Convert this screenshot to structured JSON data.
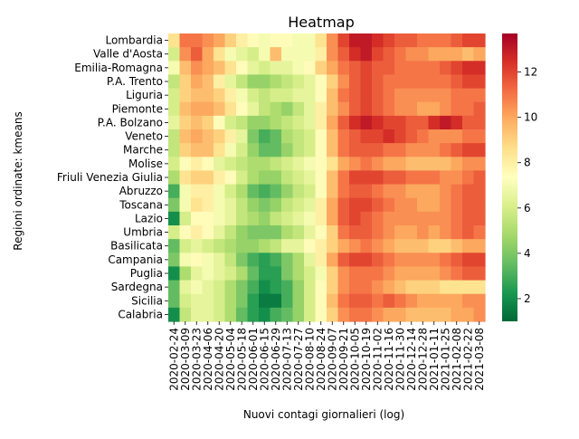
{
  "chart_data": {
    "type": "heatmap",
    "title": "Heatmap",
    "xlabel": "Nuovi contagi giornalieri (log)",
    "ylabel": "Regioni ordinate: kmeans",
    "rows": [
      "Lombardia",
      "Valle d'Aosta",
      "Emilia-Romagna",
      "P.A. Trento",
      "Liguria",
      "Piemonte",
      "P.A. Bolzano",
      "Veneto",
      "Marche",
      "Molise",
      "Friuli Venezia Giulia",
      "Abruzzo",
      "Toscana",
      "Lazio",
      "Umbria",
      "Basilicata",
      "Campania",
      "Puglia",
      "Sardegna",
      "Sicilia",
      "Calabria"
    ],
    "column_tick_labels": [
      "2020-02-24",
      "2020-03-09",
      "2020-03-23",
      "2020-04-06",
      "2020-04-20",
      "2020-05-04",
      "2020-05-18",
      "2020-06-01",
      "2020-06-15",
      "2020-06-29",
      "2020-07-13",
      "2020-07-27",
      "2020-08-10",
      "2020-08-24",
      "2020-09-07",
      "2020-09-21",
      "2020-10-05",
      "2020-10-19",
      "2020-11-02",
      "2020-11-16",
      "2020-11-30",
      "2020-12-14",
      "2020-12-28",
      "2021-01-11",
      "2021-01-25",
      "2021-02-08",
      "2021-02-22",
      "2021-03-08"
    ],
    "colorbar": {
      "colormap": "RdYlGn_r",
      "vmin": 1,
      "vmax": 13.7,
      "ticks": [
        2,
        4,
        6,
        8,
        10,
        12
      ]
    },
    "approximate_values_per_column": {
      "note": "",
      "columns": [
        [
          8.5,
          6.0,
          7.0,
          5.5,
          6.0,
          6.0,
          6.5,
          5.5,
          5.5,
          6.0,
          5.0,
          3.0,
          4.0,
          2.0,
          6.0,
          3.5,
          4.0,
          2.0,
          3.5,
          3.5,
          2.0
        ],
        [
          11.0,
          10.5,
          9.5,
          9.0,
          9.0,
          9.5,
          9.0,
          9.5,
          9.0,
          7.5,
          8.5,
          7.0,
          7.0,
          6.0,
          7.5,
          6.0,
          7.0,
          5.0,
          6.5,
          6.0,
          5.5
        ],
        [
          11.0,
          11.5,
          10.5,
          10.0,
          9.5,
          10.0,
          9.5,
          10.0,
          9.5,
          8.0,
          9.0,
          8.0,
          8.5,
          7.5,
          8.0,
          6.5,
          7.5,
          6.5,
          7.0,
          6.5,
          6.5
        ],
        [
          10.5,
          10.0,
          10.0,
          9.5,
          9.5,
          10.0,
          9.0,
          9.5,
          9.5,
          7.5,
          9.0,
          8.0,
          8.0,
          7.5,
          7.5,
          6.0,
          7.0,
          7.0,
          6.5,
          6.5,
          6.5
        ],
        [
          10.0,
          8.5,
          9.5,
          8.0,
          9.0,
          9.5,
          7.5,
          9.0,
          8.5,
          6.5,
          8.0,
          7.0,
          7.0,
          7.0,
          6.5,
          5.5,
          6.5,
          6.5,
          6.0,
          6.0,
          6.0
        ],
        [
          9.0,
          7.0,
          8.5,
          6.5,
          8.0,
          8.5,
          6.0,
          8.0,
          7.0,
          6.0,
          7.5,
          6.0,
          6.5,
          6.5,
          5.5,
          5.0,
          5.5,
          6.0,
          5.0,
          5.0,
          5.0
        ],
        [
          8.0,
          6.5,
          7.5,
          5.5,
          7.0,
          7.5,
          5.5,
          6.5,
          6.0,
          5.5,
          6.0,
          5.0,
          5.5,
          5.5,
          4.5,
          4.5,
          4.0,
          5.0,
          4.0,
          4.0,
          3.5
        ],
        [
          7.5,
          6.0,
          6.5,
          4.5,
          6.0,
          6.5,
          4.5,
          4.0,
          4.5,
          5.0,
          5.0,
          3.5,
          4.5,
          5.0,
          4.0,
          4.5,
          3.0,
          3.5,
          3.0,
          2.5,
          2.5
        ],
        [
          7.0,
          7.0,
          6.0,
          4.5,
          5.5,
          5.5,
          4.5,
          3.0,
          3.5,
          5.0,
          4.5,
          3.0,
          4.0,
          4.5,
          4.0,
          5.0,
          2.5,
          2.5,
          2.0,
          1.5,
          2.0
        ],
        [
          7.5,
          9.5,
          6.5,
          5.0,
          6.0,
          5.0,
          5.0,
          3.5,
          3.5,
          5.5,
          4.5,
          3.5,
          4.5,
          5.5,
          4.0,
          5.5,
          3.0,
          2.5,
          2.5,
          1.5,
          3.0
        ],
        [
          7.5,
          7.0,
          6.5,
          5.5,
          6.0,
          4.5,
          5.5,
          5.0,
          4.5,
          6.0,
          5.5,
          4.5,
          5.5,
          6.0,
          5.0,
          6.5,
          4.0,
          4.0,
          3.0,
          3.0,
          3.5
        ],
        [
          7.0,
          7.0,
          7.0,
          6.0,
          6.5,
          5.5,
          6.0,
          5.5,
          5.5,
          6.5,
          6.0,
          5.5,
          6.0,
          6.5,
          5.5,
          6.5,
          5.0,
          5.0,
          4.5,
          4.5,
          4.5
        ],
        [
          7.0,
          7.0,
          7.5,
          6.5,
          6.5,
          6.5,
          6.5,
          6.0,
          6.0,
          7.0,
          6.5,
          6.0,
          6.5,
          7.0,
          6.5,
          7.5,
          6.5,
          6.0,
          6.0,
          6.0,
          6.0
        ],
        [
          8.5,
          8.0,
          9.0,
          7.5,
          7.5,
          8.0,
          8.0,
          7.5,
          7.5,
          7.5,
          7.5,
          7.5,
          8.0,
          8.0,
          7.5,
          8.0,
          8.0,
          7.0,
          7.5,
          7.5,
          7.5
        ],
        [
          10.5,
          10.5,
          10.0,
          9.0,
          9.5,
          9.5,
          10.0,
          9.5,
          9.5,
          8.5,
          9.5,
          9.5,
          10.0,
          10.0,
          9.0,
          9.0,
          10.0,
          9.0,
          9.0,
          9.5,
          9.0
        ],
        [
          12.0,
          11.5,
          11.0,
          10.5,
          11.0,
          10.5,
          11.5,
          11.0,
          11.0,
          10.0,
          11.0,
          11.0,
          11.5,
          11.5,
          11.0,
          10.0,
          11.5,
          10.5,
          10.5,
          11.0,
          10.5
        ],
        [
          13.0,
          12.5,
          11.5,
          11.5,
          11.5,
          11.5,
          12.5,
          11.5,
          11.5,
          10.5,
          12.0,
          11.5,
          12.0,
          12.0,
          11.5,
          10.5,
          12.0,
          11.0,
          11.0,
          11.5,
          11.0
        ],
        [
          13.0,
          13.0,
          12.0,
          12.0,
          12.0,
          12.0,
          13.0,
          12.0,
          11.5,
          11.0,
          12.0,
          11.5,
          12.0,
          11.5,
          11.5,
          11.0,
          12.0,
          11.0,
          11.0,
          11.5,
          11.0
        ],
        [
          12.5,
          12.0,
          11.5,
          11.5,
          11.5,
          11.5,
          12.5,
          12.0,
          11.5,
          10.5,
          12.0,
          11.0,
          11.5,
          11.0,
          11.0,
          10.5,
          11.5,
          11.0,
          10.5,
          11.0,
          10.5
        ],
        [
          12.0,
          11.5,
          11.5,
          11.0,
          11.0,
          11.0,
          12.0,
          12.5,
          11.0,
          10.0,
          11.5,
          10.5,
          11.0,
          10.5,
          10.5,
          10.0,
          11.0,
          10.5,
          10.0,
          11.5,
          10.0
        ],
        [
          11.5,
          11.0,
          11.0,
          11.0,
          10.5,
          10.5,
          12.0,
          12.0,
          11.0,
          10.0,
          11.5,
          10.5,
          10.5,
          10.5,
          10.0,
          9.5,
          10.5,
          10.0,
          9.5,
          11.0,
          10.0
        ],
        [
          11.5,
          10.5,
          11.0,
          11.0,
          10.5,
          10.5,
          11.5,
          11.5,
          10.5,
          9.5,
          11.0,
          10.0,
          10.5,
          10.5,
          10.0,
          9.5,
          10.5,
          10.0,
          9.0,
          10.5,
          9.5
        ],
        [
          11.0,
          10.5,
          11.0,
          11.0,
          10.5,
          10.0,
          11.5,
          11.0,
          10.5,
          9.5,
          11.0,
          10.0,
          10.0,
          10.5,
          10.5,
          9.5,
          10.5,
          10.0,
          9.0,
          10.0,
          9.5
        ],
        [
          11.0,
          10.0,
          11.0,
          11.0,
          10.5,
          10.0,
          12.5,
          10.5,
          10.5,
          9.5,
          11.0,
          10.0,
          10.0,
          10.5,
          10.0,
          9.0,
          10.5,
          10.0,
          9.0,
          10.0,
          9.5
        ],
        [
          11.0,
          10.0,
          11.5,
          11.0,
          10.5,
          10.5,
          13.0,
          10.5,
          11.0,
          9.5,
          10.5,
          10.5,
          10.5,
          10.5,
          10.5,
          9.0,
          11.0,
          10.5,
          8.5,
          10.0,
          9.5
        ],
        [
          11.5,
          10.0,
          12.0,
          11.5,
          11.0,
          11.0,
          12.5,
          10.5,
          11.5,
          10.0,
          10.5,
          11.0,
          11.0,
          11.0,
          11.0,
          9.5,
          11.5,
          11.0,
          8.5,
          10.0,
          10.0
        ],
        [
          12.0,
          9.5,
          12.5,
          12.0,
          11.0,
          11.0,
          11.5,
          11.0,
          12.0,
          10.5,
          11.0,
          11.5,
          11.5,
          11.5,
          11.5,
          10.0,
          12.0,
          11.5,
          8.5,
          10.5,
          10.0
        ],
        [
          12.0,
          10.0,
          12.5,
          12.0,
          11.0,
          11.5,
          11.5,
          11.0,
          12.0,
          10.5,
          11.5,
          11.5,
          11.5,
          11.5,
          11.0,
          10.0,
          12.0,
          11.5,
          8.5,
          10.5,
          10.5
        ]
      ]
    }
  }
}
